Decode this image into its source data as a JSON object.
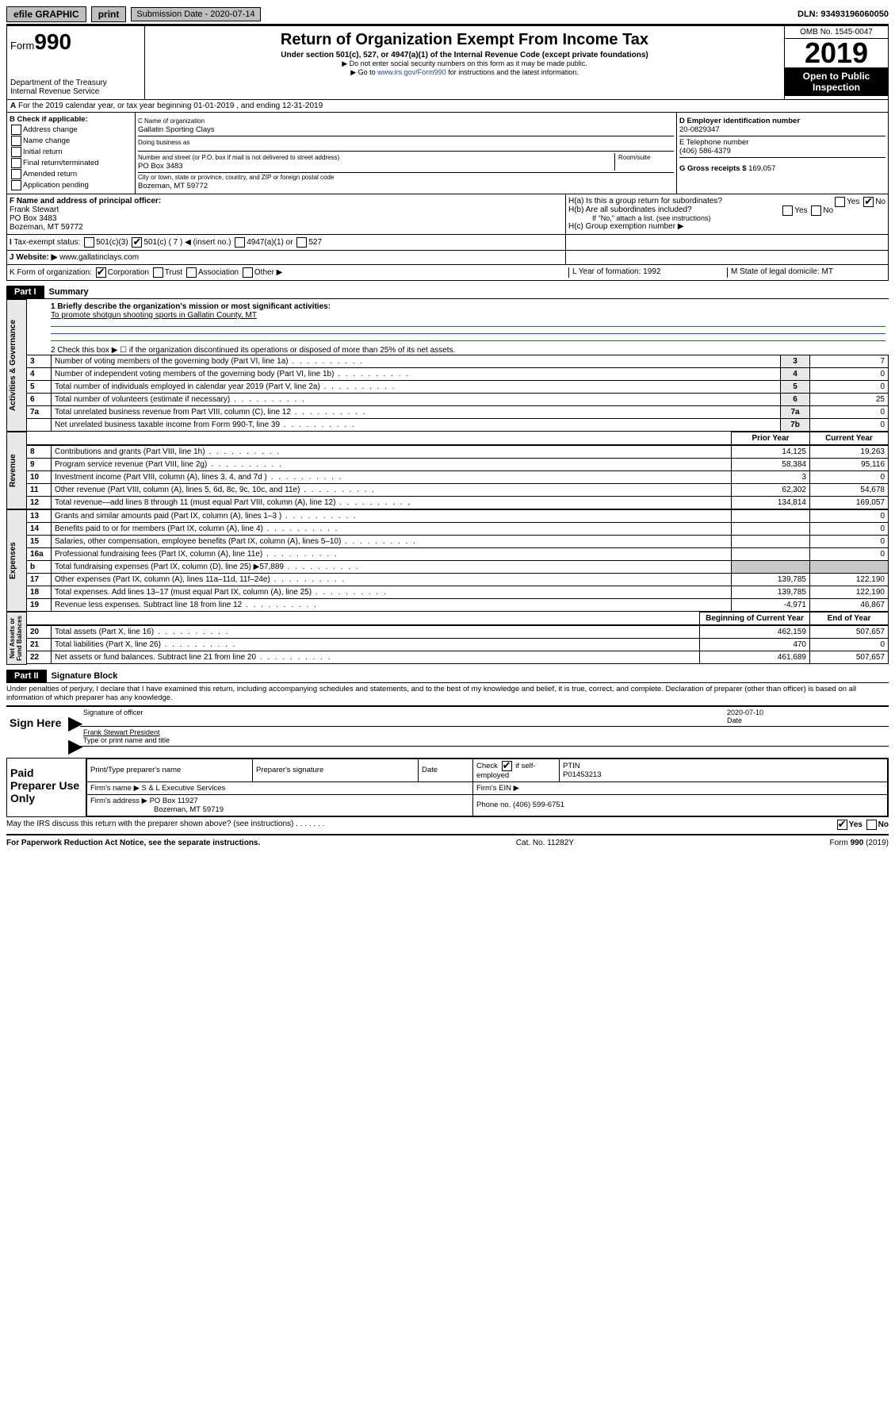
{
  "topbar": {
    "efile": "efile GRAPHIC",
    "print": "print",
    "submission": "Submission Date - 2020-07-14",
    "dln": "DLN: 93493196060050"
  },
  "header": {
    "form_prefix": "Form",
    "form_num": "990",
    "dept": "Department of the Treasury\nInternal Revenue Service",
    "title": "Return of Organization Exempt From Income Tax",
    "sub": "Under section 501(c), 527, or 4947(a)(1) of the Internal Revenue Code (except private foundations)",
    "l2": "▶ Do not enter social security numbers on this form as it may be made public.",
    "l3a": "▶ Go to ",
    "l3b": "www.irs.gov/Form990",
    "l3c": " for instructions and the latest information.",
    "omb": "OMB No. 1545-0047",
    "year": "2019",
    "open": "Open to Public Inspection"
  },
  "rowA": "For the 2019 calendar year, or tax year beginning 01-01-2019   , and ending 12-31-2019",
  "checkB": {
    "title": "B Check if applicable:",
    "items": [
      "Address change",
      "Name change",
      "Initial return",
      "Final return/terminated",
      "Amended return",
      "Application pending"
    ]
  },
  "C": {
    "label": "C Name of organization",
    "name": "Gallatin Sporting Clays",
    "dba": "Doing business as",
    "addrlabel": "Number and street (or P.O. box if mail is not delivered to street address)",
    "room": "Room/suite",
    "addr": "PO Box 3483",
    "citylabel": "City or town, state or province, country, and ZIP or foreign postal code",
    "city": "Bozeman, MT  59772"
  },
  "D": {
    "label": "D Employer identification number",
    "ein": "20-0829347"
  },
  "E": {
    "label": "E Telephone number",
    "tel": "(406) 586-4379"
  },
  "G": {
    "label": "G Gross receipts $",
    "val": "169,057"
  },
  "F": {
    "label": "F  Name and address of principal officer:",
    "l1": "Frank Stewart",
    "l2": "PO Box 3483",
    "l3": "Bozeman, MT  59772"
  },
  "H": {
    "a": "H(a)  Is this a group return for subordinates?",
    "b": "H(b)  Are all subordinates included?",
    "note": "If \"No,\" attach a list. (see instructions)",
    "c": "H(c)  Group exemption number ▶",
    "yes": "Yes",
    "no": "No"
  },
  "I": {
    "label": "Tax-exempt status:",
    "a": "501(c)(3)",
    "b": "501(c) ( 7 ) ◀ (insert no.)",
    "c": "4947(a)(1) or",
    "d": "527"
  },
  "J": {
    "label": "Website: ▶",
    "val": "www.gallatinclays.com"
  },
  "K": {
    "label": "K Form of organization:",
    "a": "Corporation",
    "b": "Trust",
    "c": "Association",
    "d": "Other ▶"
  },
  "L": {
    "label": "L Year of formation:",
    "val": "1992"
  },
  "M": {
    "label": "M State of legal domicile:",
    "val": "MT"
  },
  "part1": {
    "tab": "Part I",
    "title": "Summary",
    "q1": "1  Briefly describe the organization's mission or most significant activities:",
    "mission": "To promote shotgun shooting sports in Gallatin County, MT",
    "q2": "2   Check this box ▶ ☐  if the organization discontinued its operations or disposed of more than 25% of its net assets.",
    "rows_gov": [
      {
        "n": "3",
        "t": "Number of voting members of the governing body (Part VI, line 1a)",
        "b": "3",
        "v": "7"
      },
      {
        "n": "4",
        "t": "Number of independent voting members of the governing body (Part VI, line 1b)",
        "b": "4",
        "v": "0"
      },
      {
        "n": "5",
        "t": "Total number of individuals employed in calendar year 2019 (Part V, line 2a)",
        "b": "5",
        "v": "0"
      },
      {
        "n": "6",
        "t": "Total number of volunteers (estimate if necessary)",
        "b": "6",
        "v": "25"
      },
      {
        "n": "7a",
        "t": "Total unrelated business revenue from Part VIII, column (C), line 12",
        "b": "7a",
        "v": "0"
      },
      {
        "n": "",
        "t": "Net unrelated business taxable income from Form 990-T, line 39",
        "b": "7b",
        "v": "0"
      }
    ],
    "hdr_prior": "Prior Year",
    "hdr_curr": "Current Year",
    "rows_rev": [
      {
        "n": "8",
        "t": "Contributions and grants (Part VIII, line 1h)",
        "p": "14,125",
        "c": "19,263"
      },
      {
        "n": "9",
        "t": "Program service revenue (Part VIII, line 2g)",
        "p": "58,384",
        "c": "95,116"
      },
      {
        "n": "10",
        "t": "Investment income (Part VIII, column (A), lines 3, 4, and 7d )",
        "p": "3",
        "c": "0"
      },
      {
        "n": "11",
        "t": "Other revenue (Part VIII, column (A), lines 5, 6d, 8c, 9c, 10c, and 11e)",
        "p": "62,302",
        "c": "54,678"
      },
      {
        "n": "12",
        "t": "Total revenue—add lines 8 through 11 (must equal Part VIII, column (A), line 12)",
        "p": "134,814",
        "c": "169,057"
      }
    ],
    "rows_exp": [
      {
        "n": "13",
        "t": "Grants and similar amounts paid (Part IX, column (A), lines 1–3 )",
        "p": "",
        "c": "0"
      },
      {
        "n": "14",
        "t": "Benefits paid to or for members (Part IX, column (A), line 4)",
        "p": "",
        "c": "0"
      },
      {
        "n": "15",
        "t": "Salaries, other compensation, employee benefits (Part IX, column (A), lines 5–10)",
        "p": "",
        "c": "0"
      },
      {
        "n": "16a",
        "t": "Professional fundraising fees (Part IX, column (A), line 11e)",
        "p": "",
        "c": "0"
      },
      {
        "n": "b",
        "t": "Total fundraising expenses (Part IX, column (D), line 25) ▶57,889",
        "p": "grey",
        "c": "grey"
      },
      {
        "n": "17",
        "t": "Other expenses (Part IX, column (A), lines 11a–11d, 11f–24e)",
        "p": "139,785",
        "c": "122,190"
      },
      {
        "n": "18",
        "t": "Total expenses. Add lines 13–17 (must equal Part IX, column (A), line 25)",
        "p": "139,785",
        "c": "122,190"
      },
      {
        "n": "19",
        "t": "Revenue less expenses. Subtract line 18 from line 12",
        "p": "-4,971",
        "c": "46,867"
      }
    ],
    "hdr_beg": "Beginning of Current Year",
    "hdr_end": "End of Year",
    "rows_net": [
      {
        "n": "20",
        "t": "Total assets (Part X, line 16)",
        "p": "462,159",
        "c": "507,657"
      },
      {
        "n": "21",
        "t": "Total liabilities (Part X, line 26)",
        "p": "470",
        "c": "0"
      },
      {
        "n": "22",
        "t": "Net assets or fund balances. Subtract line 21 from line 20",
        "p": "461,689",
        "c": "507,657"
      }
    ]
  },
  "part2": {
    "tab": "Part II",
    "title": "Signature Block",
    "decl": "Under penalties of perjury, I declare that I have examined this return, including accompanying schedules and statements, and to the best of my knowledge and belief, it is true, correct, and complete. Declaration of preparer (other than officer) is based on all information of which preparer has any knowledge."
  },
  "sign": {
    "here": "Sign Here",
    "sigoff": "Signature of officer",
    "date": "2020-07-10",
    "datelab": "Date",
    "name": "Frank Stewart President",
    "typelab": "Type or print name and title"
  },
  "paid": {
    "lab": "Paid Preparer Use Only",
    "h1": "Print/Type preparer's name",
    "h2": "Preparer's signature",
    "h3": "Date",
    "h4a": "Check",
    "h4b": "if self-employed",
    "h5": "PTIN",
    "ptin": "P01453213",
    "firmname_l": "Firm's name   ▶",
    "firmname": "S & L Executive Services",
    "firmein": "Firm's EIN ▶",
    "firmaddr_l": "Firm's address ▶",
    "firmaddr1": "PO Box 11927",
    "firmaddr2": "Bozeman, MT  59719",
    "phone_l": "Phone no.",
    "phone": "(406) 599-6751"
  },
  "discuss": {
    "q": "May the IRS discuss this return with the preparer shown above? (see instructions)",
    "yes": "Yes",
    "no": "No"
  },
  "footer": {
    "l": "For Paperwork Reduction Act Notice, see the separate instructions.",
    "m": "Cat. No. 11282Y",
    "r": "Form 990 (2019)"
  }
}
